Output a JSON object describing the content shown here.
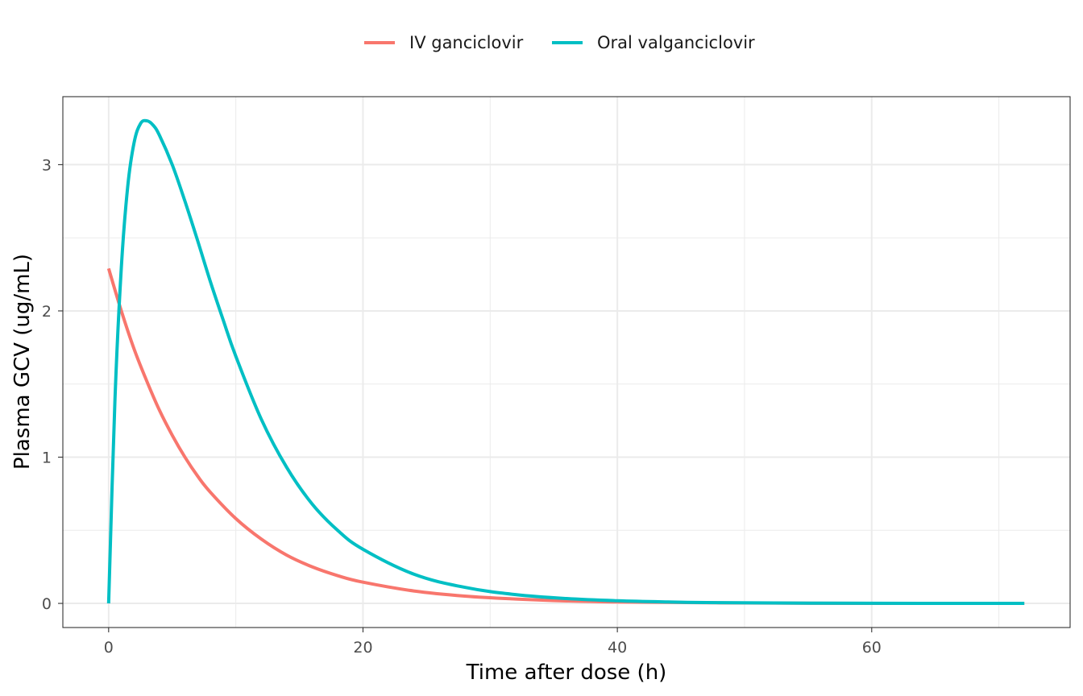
{
  "chart_data": {
    "type": "line",
    "xlabel": "Time after dose (h)",
    "ylabel": "Plasma GCV (ug/mL)",
    "xlim": [
      -3.6,
      75.6
    ],
    "ylim": [
      -0.165,
      3.465
    ],
    "x_ticks": [
      0,
      20,
      40,
      60
    ],
    "y_ticks": [
      0,
      1,
      2,
      3
    ],
    "grid": true,
    "legend_position": "top",
    "series": [
      {
        "name": "IV ganciclovir",
        "color": "#F8766D",
        "x": [
          0,
          1,
          2,
          3,
          4,
          5,
          6,
          7,
          8,
          10,
          12,
          14,
          16,
          18,
          20,
          24,
          28,
          32,
          36,
          40,
          48,
          56,
          64,
          72
        ],
        "y": [
          2.29,
          2.0,
          1.74,
          1.52,
          1.32,
          1.15,
          1.0,
          0.87,
          0.76,
          0.58,
          0.44,
          0.33,
          0.25,
          0.19,
          0.145,
          0.085,
          0.05,
          0.03,
          0.017,
          0.01,
          0.004,
          0.001,
          0.0005,
          0.0001
        ]
      },
      {
        "name": "Oral valganciclovir",
        "color": "#00BFC4",
        "x": [
          0,
          0.5,
          1,
          1.5,
          2,
          2.5,
          3,
          3.5,
          4,
          5,
          6,
          7,
          8,
          9,
          10,
          12,
          14,
          16,
          18,
          20,
          24,
          28,
          32,
          36,
          40,
          44,
          48,
          56,
          64,
          72
        ],
        "y": [
          0,
          1.4,
          2.3,
          2.85,
          3.15,
          3.28,
          3.3,
          3.27,
          3.2,
          3.0,
          2.75,
          2.48,
          2.2,
          1.94,
          1.69,
          1.26,
          0.93,
          0.68,
          0.5,
          0.37,
          0.2,
          0.11,
          0.06,
          0.033,
          0.018,
          0.01,
          0.005,
          0.0015,
          0.0004,
          0.0001
        ]
      }
    ]
  }
}
